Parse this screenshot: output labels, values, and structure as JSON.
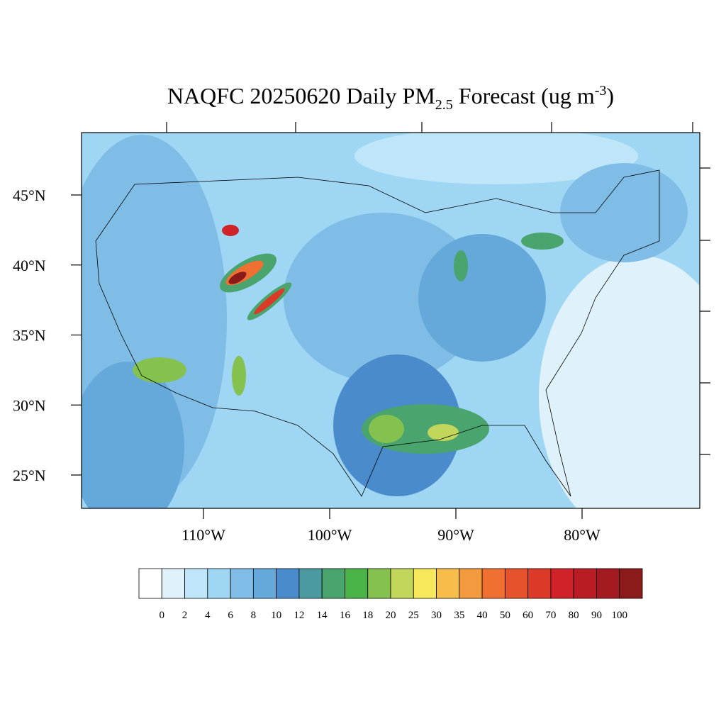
{
  "map": {
    "title": {
      "main": "NAQFC 20250620 Daily PM",
      "sub": "2.5",
      "rest": " Forecast (ug m",
      "sup": "-3",
      "end": ")"
    },
    "lat_ticks": [
      {
        "value": 45,
        "label": "45°N"
      },
      {
        "value": 40,
        "label": "40°N"
      },
      {
        "value": 35,
        "label": "35°N"
      },
      {
        "value": 30,
        "label": "30°N"
      },
      {
        "value": 25,
        "label": "25°N"
      }
    ],
    "lon_ticks": [
      {
        "value": -110,
        "label": "110°W"
      },
      {
        "value": -100,
        "label": "100°W"
      },
      {
        "value": -90,
        "label": "90°W"
      },
      {
        "value": -80,
        "label": "80°W"
      }
    ],
    "colorbar": {
      "levels": [
        0,
        2,
        4,
        6,
        8,
        10,
        12,
        14,
        16,
        18,
        20,
        25,
        30,
        35,
        40,
        50,
        60,
        70,
        80,
        90,
        100
      ],
      "colors": [
        "#ffffff",
        "#dff2fb",
        "#bfe6f8",
        "#9fd6f3",
        "#80bde6",
        "#65a8da",
        "#4a8ccb",
        "#4a9aa0",
        "#49a46d",
        "#4bb449",
        "#85c14e",
        "#c2d65b",
        "#f6e85a",
        "#f6bd4a",
        "#f49a3e",
        "#ef7030",
        "#e5522c",
        "#dc3a28",
        "#cf2229",
        "#b91c23",
        "#a31b21",
        "#8b1a1a"
      ]
    }
  }
}
